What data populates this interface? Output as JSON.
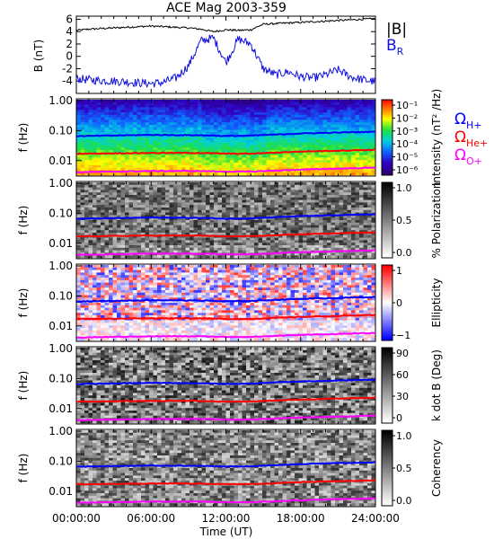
{
  "title": "ACE Mag 2003-359",
  "xlabel": "Time (UT)",
  "x_ticks": [
    "00:00:00",
    "06:00:00",
    "12:00:00",
    "18:00:00",
    "24:00:00"
  ],
  "colors": {
    "B_total": "#000000",
    "B_R": "#1010e0",
    "H_plus": "#0000ff",
    "He_plus": "#ff0000",
    "O_plus": "#ff00ff"
  },
  "chart_data": [
    {
      "type": "line",
      "ylabel": "B (nT)",
      "ylim": [
        -6,
        6.5
      ],
      "y_ticks": [
        "6",
        "4",
        "2",
        "0",
        "-2",
        "-4"
      ],
      "legend": [
        "|B|",
        "B"
      ],
      "legend_sub": [
        "",
        "R"
      ],
      "x_hours": [
        0,
        1,
        2,
        3,
        4,
        5,
        6,
        7,
        8,
        9,
        10,
        11,
        12,
        13,
        14,
        15,
        16,
        17,
        18,
        19,
        20,
        21,
        22,
        23,
        24
      ],
      "series": [
        {
          "name": "|B|",
          "values": [
            4.2,
            4.4,
            4.5,
            4.6,
            4.7,
            4.8,
            4.9,
            4.8,
            4.7,
            4.6,
            4.4,
            4.0,
            4.3,
            4.2,
            4.3,
            5.2,
            5.3,
            5.4,
            5.5,
            5.6,
            5.7,
            5.8,
            5.9,
            6.0,
            6.1
          ]
        },
        {
          "name": "B",
          "values": [
            -3.6,
            -3.8,
            -3.9,
            -4.0,
            -4.1,
            -4.3,
            -4.4,
            -4.2,
            -3.5,
            -1.5,
            2.5,
            3.0,
            -1.0,
            2.8,
            2.0,
            -2.0,
            -3.0,
            -2.5,
            -3.3,
            -3.5,
            -3.0,
            -2.2,
            -3.3,
            -3.8,
            -4.1
          ]
        }
      ]
    },
    {
      "type": "heatmap",
      "quantity": "Intensity",
      "colorbar_label": "Intensity (nT² /Hz)",
      "colorbar_ticks": [
        "10⁻¹",
        "10⁻²",
        "10⁻³",
        "10⁻⁴",
        "10⁻⁵",
        "10⁻⁶"
      ],
      "ylabel": "f (Hz)",
      "y_ticks": [
        "1.00",
        "0.10",
        "0.01"
      ]
    },
    {
      "type": "heatmap",
      "quantity": "% Polarization",
      "colorbar_label": "% Polarization",
      "colorbar_ticks": [
        "1.0",
        "0.5",
        "0.0"
      ],
      "ylabel": "f (Hz)",
      "y_ticks": [
        "1.00",
        "0.10",
        "0.01"
      ]
    },
    {
      "type": "heatmap",
      "quantity": "Ellipticity",
      "colorbar_label": "Ellipticity",
      "colorbar_ticks": [
        "1",
        "0",
        "−1"
      ],
      "ylabel": "f (Hz)",
      "y_ticks": [
        "1.00",
        "0.10",
        "0.01"
      ]
    },
    {
      "type": "heatmap",
      "quantity": "k dot B",
      "colorbar_label": "k dot B (Deg)",
      "colorbar_ticks": [
        "90",
        "60",
        "30",
        "0"
      ],
      "ylabel": "f (Hz)",
      "y_ticks": [
        "1.00",
        "0.10",
        "0.01"
      ]
    },
    {
      "type": "heatmap",
      "quantity": "Coherency",
      "colorbar_label": "Coherency",
      "colorbar_ticks": [
        "1.0",
        "0.5",
        "0.0"
      ],
      "ylabel": "f (Hz)",
      "y_ticks": [
        "1.00",
        "0.10",
        "0.01"
      ]
    }
  ],
  "gyrofrequency_lines": {
    "legend": [
      "Ω",
      "Ω",
      "Ω"
    ],
    "legend_sub": [
      "H+",
      "He+",
      "O+"
    ],
    "x_hours": [
      0,
      6,
      10,
      12,
      14,
      18,
      24
    ],
    "H_plus": [
      0.065,
      0.072,
      0.07,
      0.066,
      0.068,
      0.08,
      0.092
    ],
    "He_plus": [
      0.017,
      0.018,
      0.018,
      0.017,
      0.017,
      0.02,
      0.023
    ],
    "O_plus": [
      0.0041,
      0.0045,
      0.0045,
      0.0043,
      0.0043,
      0.005,
      0.0058
    ]
  }
}
